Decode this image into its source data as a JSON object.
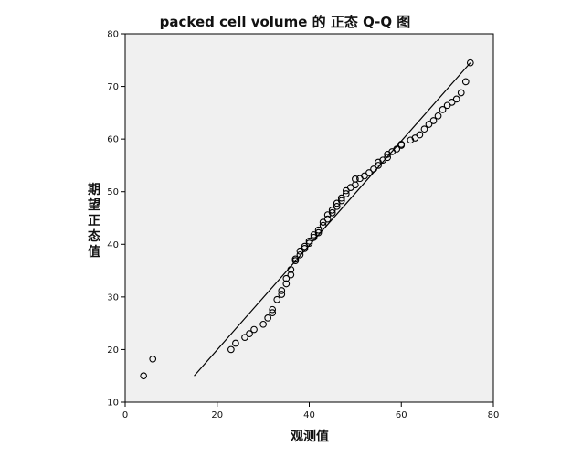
{
  "chart_data": {
    "type": "scatter",
    "title": "packed cell volume 的 正态 Q-Q 图",
    "xlabel": "观测值",
    "ylabel": "期望正态值",
    "xlim": [
      0,
      80
    ],
    "ylim": [
      10,
      80
    ],
    "xticks": [
      0,
      20,
      40,
      60,
      80
    ],
    "yticks": [
      10,
      20,
      30,
      40,
      50,
      60,
      70,
      80
    ],
    "grid": false,
    "background": "#f0f0f0",
    "point_color": "#000000",
    "line_color": "#000000",
    "reference_line": {
      "x": [
        15,
        75
      ],
      "y": [
        15,
        74.5
      ]
    },
    "series": [
      {
        "values": [
          [
            4,
            15.0
          ],
          [
            6,
            18.2
          ],
          [
            23,
            20.0
          ],
          [
            24,
            21.2
          ],
          [
            26,
            22.3
          ],
          [
            27,
            23.0
          ],
          [
            28,
            23.8
          ],
          [
            30,
            24.8
          ],
          [
            31,
            26.0
          ],
          [
            32,
            27.0
          ],
          [
            32,
            27.6
          ],
          [
            33,
            29.5
          ],
          [
            34,
            30.5
          ],
          [
            34,
            31.2
          ],
          [
            35,
            32.5
          ],
          [
            35,
            33.5
          ],
          [
            36,
            34.2
          ],
          [
            36,
            35.2
          ],
          [
            37,
            36.9
          ],
          [
            37,
            37.2
          ],
          [
            38,
            38.0
          ],
          [
            38,
            38.7
          ],
          [
            39,
            39.2
          ],
          [
            39,
            39.6
          ],
          [
            40,
            40.2
          ],
          [
            40,
            40.6
          ],
          [
            41,
            41.3
          ],
          [
            41,
            41.8
          ],
          [
            42,
            42.2
          ],
          [
            42,
            42.7
          ],
          [
            43,
            43.6
          ],
          [
            43,
            44.2
          ],
          [
            44,
            44.8
          ],
          [
            44,
            45.6
          ],
          [
            45,
            46.0
          ],
          [
            45,
            46.5
          ],
          [
            46,
            47.2
          ],
          [
            46,
            47.8
          ],
          [
            47,
            48.3
          ],
          [
            47,
            48.8
          ],
          [
            48,
            49.6
          ],
          [
            48,
            50.2
          ],
          [
            49,
            50.8
          ],
          [
            50,
            51.3
          ],
          [
            50,
            52.4
          ],
          [
            51,
            52.5
          ],
          [
            52,
            53.0
          ],
          [
            53,
            53.6
          ],
          [
            54,
            54.3
          ],
          [
            55,
            55.0
          ],
          [
            55,
            55.6
          ],
          [
            56,
            56.0
          ],
          [
            57,
            56.5
          ],
          [
            57,
            57.1
          ],
          [
            58,
            57.6
          ],
          [
            59,
            58.1
          ],
          [
            60,
            58.8
          ],
          [
            60,
            59.0
          ],
          [
            62,
            59.8
          ],
          [
            63,
            60.2
          ],
          [
            64,
            60.8
          ],
          [
            65,
            61.9
          ],
          [
            66,
            62.8
          ],
          [
            67,
            63.5
          ],
          [
            68,
            64.4
          ],
          [
            69,
            65.6
          ],
          [
            70,
            66.4
          ],
          [
            71,
            67.0
          ],
          [
            72,
            67.6
          ],
          [
            73,
            68.8
          ],
          [
            74,
            70.9
          ],
          [
            75,
            74.5
          ]
        ]
      }
    ]
  }
}
